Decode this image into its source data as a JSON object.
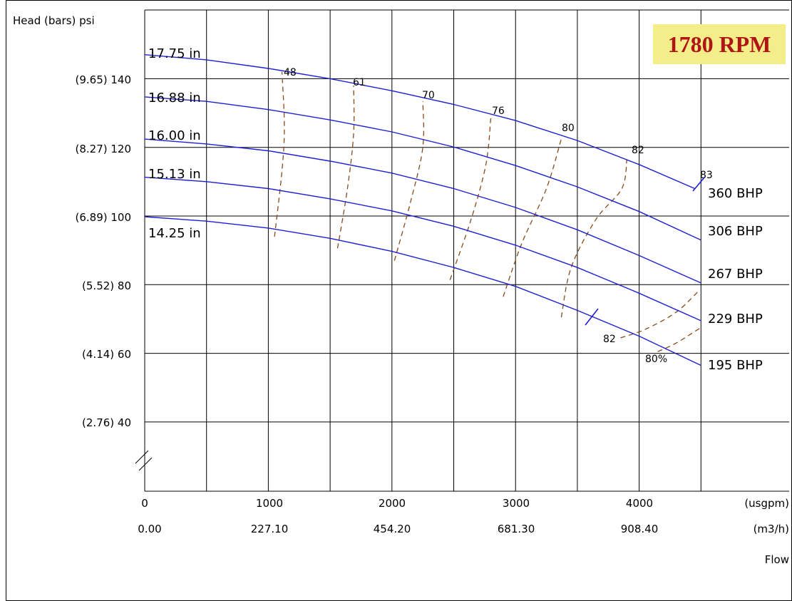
{
  "chart_data": {
    "type": "line",
    "title": "1780 RPM",
    "ylabel": "Head (bars)  psi",
    "xlabel": "Flow",
    "x_unit_primary": "(usgpm)",
    "x_unit_secondary": "(m3/h)",
    "xlim": [
      0,
      4500
    ],
    "ylim": [
      20,
      160
    ],
    "x_ticks": [
      {
        "usgpm": "0",
        "m3h": "0.00"
      },
      {
        "usgpm": "1000",
        "m3h": "227.10"
      },
      {
        "usgpm": "2000",
        "m3h": "454.20"
      },
      {
        "usgpm": "3000",
        "m3h": "681.30"
      },
      {
        "usgpm": "4000",
        "m3h": "908.40"
      }
    ],
    "y_ticks": [
      {
        "value": 140,
        "label": "(9.65) 140"
      },
      {
        "value": 120,
        "label": "(8.27) 120"
      },
      {
        "value": 100,
        "label": "(6.89) 100"
      },
      {
        "value": 80,
        "label": "(5.52) 80"
      },
      {
        "value": 60,
        "label": "(4.14) 60"
      },
      {
        "value": 40,
        "label": "(2.76) 40"
      }
    ],
    "series": [
      {
        "name": "17.75 in",
        "x": [
          0,
          500,
          1000,
          1500,
          2000,
          2500,
          3000,
          3500,
          4000,
          4450
        ],
        "y": [
          147,
          145.5,
          143,
          140,
          136.5,
          132.5,
          127.8,
          122,
          115,
          108
        ]
      },
      {
        "name": "16.88 in",
        "x": [
          0,
          500,
          1000,
          1500,
          2000,
          2500,
          3000,
          3500,
          4000,
          4500
        ],
        "y": [
          134.7,
          133.4,
          131,
          128,
          124.5,
          120.1,
          114.7,
          108.5,
          101.3,
          93
        ]
      },
      {
        "name": "16.00 in",
        "x": [
          0,
          500,
          1000,
          1500,
          2000,
          2500,
          3000,
          3500,
          4000,
          4500
        ],
        "y": [
          122.4,
          121,
          119,
          116,
          112.5,
          108,
          102.5,
          96,
          88.5,
          80.5
        ]
      },
      {
        "name": "15.13 in",
        "x": [
          0,
          500,
          1000,
          1500,
          2000,
          2500,
          3000,
          3500,
          4000,
          4500
        ],
        "y": [
          111.3,
          110,
          108,
          105,
          101.5,
          97,
          91.5,
          85,
          77.5,
          69.5
        ]
      },
      {
        "name": "14.25 in",
        "x": [
          0,
          500,
          1000,
          1500,
          2000,
          2500,
          3000,
          3500,
          4000,
          4500
        ],
        "y": [
          99.8,
          98.5,
          96.5,
          93.5,
          89.7,
          85,
          79.5,
          72.5,
          65,
          56.5
        ]
      }
    ],
    "efficiency_lines": [
      {
        "label": "48",
        "x": [
          1050,
          1110,
          1130,
          1110
        ],
        "y": [
          94,
          113,
          126,
          142
        ]
      },
      {
        "label": "61",
        "x": [
          1560,
          1640,
          1690,
          1690
        ],
        "y": [
          90.6,
          108,
          124,
          138
        ]
      },
      {
        "label": "70",
        "x": [
          2020,
          2150,
          2250,
          2250
        ],
        "y": [
          87,
          104,
          120,
          133.5
        ]
      },
      {
        "label": "76",
        "x": [
          2470,
          2640,
          2760,
          2800
        ],
        "y": [
          81.4,
          99,
          115,
          128.5
        ]
      },
      {
        "label": "80",
        "x": [
          2900,
          3050,
          3250,
          3370
        ],
        "y": [
          76.5,
          92,
          108,
          122.5
        ]
      },
      {
        "label": "82",
        "x": [
          3370,
          3450,
          3650,
          3860,
          3900
        ],
        "y": [
          70.5,
          85,
          99,
          108,
          116.5
        ]
      },
      {
        "label": "82",
        "x": [
          3850,
          4050,
          4300,
          4490
        ],
        "y": [
          64.5,
          67,
          72,
          78.5
        ]
      },
      {
        "label": "80%",
        "x": [
          4150,
          4300,
          4490
        ],
        "y": [
          60.5,
          63,
          67.3
        ]
      }
    ],
    "extra_efficiency_label": "83",
    "bhp_labels": [
      "360 BHP",
      "306 BHP",
      "267 BHP",
      "229 BHP",
      "195 BHP"
    ]
  }
}
